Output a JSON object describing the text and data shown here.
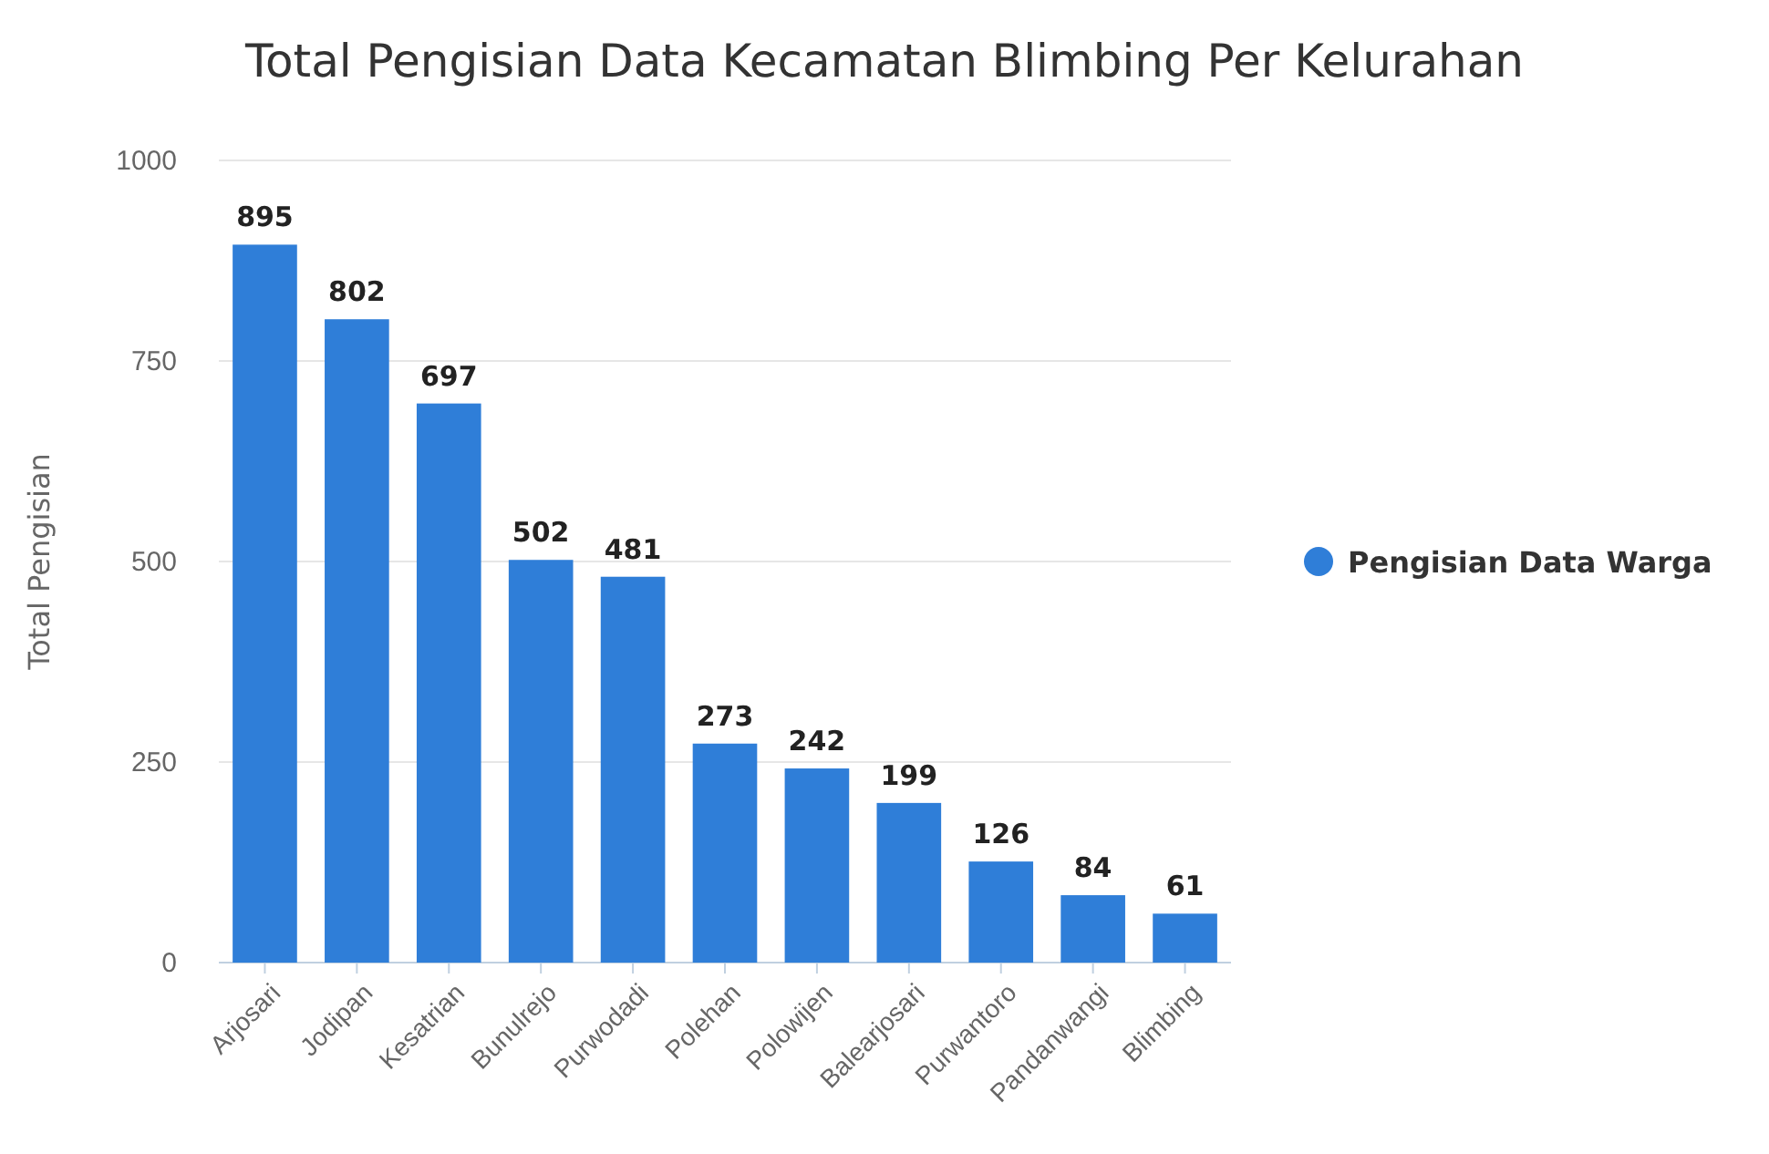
{
  "chart_data": {
    "type": "bar",
    "title": "Total Pengisian Data Kecamatan Blimbing Per Kelurahan",
    "ylabel": "Total Pengisian",
    "categories": [
      "Arjosari",
      "Jodipan",
      "Kesatrian",
      "Bunulrejo",
      "Purwodadi",
      "Polehan",
      "Polowijen",
      "Balearjosari",
      "Purwantoro",
      "Pandanwangi",
      "Blimbing"
    ],
    "series": [
      {
        "name": "Pengisian Data Warga",
        "color": "#2f7ed8",
        "values": [
          895,
          802,
          697,
          502,
          481,
          273,
          242,
          199,
          126,
          84,
          61
        ]
      }
    ],
    "ylim": [
      0,
      1000
    ],
    "yticks": [
      0,
      250,
      500,
      750,
      1000
    ],
    "grid": "y",
    "legend": "right",
    "data_labels": true
  }
}
